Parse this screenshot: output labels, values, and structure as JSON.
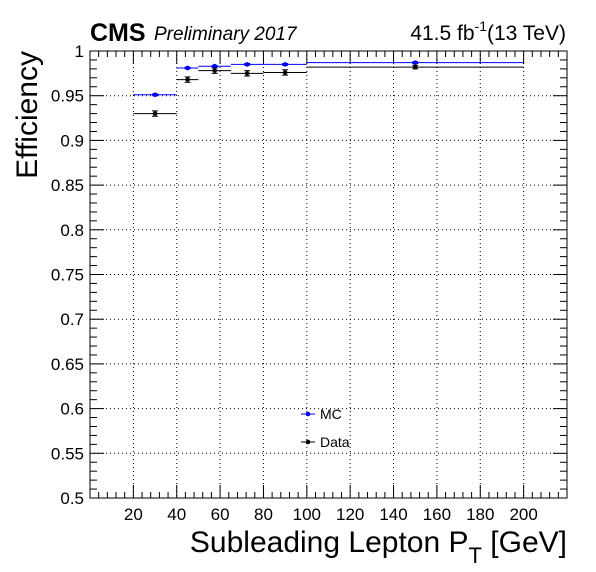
{
  "header": {
    "experiment": "CMS",
    "status": "Preliminary 2017",
    "lumi_value": "41.5 fb",
    "lumi_exp": "-1",
    "energy": "(13 TeV)"
  },
  "chart_data": {
    "type": "scatter",
    "xlabel_main": "Subleading Lepton P",
    "xlabel_sub": "T",
    "xlabel_unit": " [GeV]",
    "ylabel": "Efficiency",
    "xlim": [
      0,
      220
    ],
    "ylim": [
      0.5,
      1.0
    ],
    "x_ticks": [
      20,
      40,
      60,
      80,
      100,
      120,
      140,
      160,
      180,
      200
    ],
    "y_ticks": [
      "0.5",
      "0.55",
      "0.6",
      "0.65",
      "0.7",
      "0.75",
      "0.8",
      "0.85",
      "0.9",
      "0.95",
      "1"
    ],
    "y_tick_values": [
      0.5,
      0.55,
      0.6,
      0.65,
      0.7,
      0.75,
      0.8,
      0.85,
      0.9,
      0.95,
      1.0
    ],
    "grid": true,
    "legend_position": "bottom-center",
    "series": [
      {
        "name": "MC",
        "color": "#0000ff",
        "points": [
          {
            "xlow": 20,
            "xhigh": 40,
            "y": 0.951,
            "err": 0.001
          },
          {
            "xlow": 40,
            "xhigh": 50,
            "y": 0.981,
            "err": 0.001
          },
          {
            "xlow": 50,
            "xhigh": 65,
            "y": 0.983,
            "err": 0.001
          },
          {
            "xlow": 65,
            "xhigh": 80,
            "y": 0.985,
            "err": 0.001
          },
          {
            "xlow": 80,
            "xhigh": 100,
            "y": 0.985,
            "err": 0.001
          },
          {
            "xlow": 100,
            "xhigh": 200,
            "y": 0.987,
            "err": 0.001
          }
        ]
      },
      {
        "name": "Data",
        "color": "#000000",
        "points": [
          {
            "xlow": 20,
            "xhigh": 40,
            "y": 0.93,
            "err": 0.003
          },
          {
            "xlow": 40,
            "xhigh": 50,
            "y": 0.968,
            "err": 0.003
          },
          {
            "xlow": 50,
            "xhigh": 65,
            "y": 0.978,
            "err": 0.003
          },
          {
            "xlow": 65,
            "xhigh": 80,
            "y": 0.975,
            "err": 0.003
          },
          {
            "xlow": 80,
            "xhigh": 100,
            "y": 0.976,
            "err": 0.003
          },
          {
            "xlow": 100,
            "xhigh": 200,
            "y": 0.982,
            "err": 0.002
          }
        ]
      }
    ]
  }
}
